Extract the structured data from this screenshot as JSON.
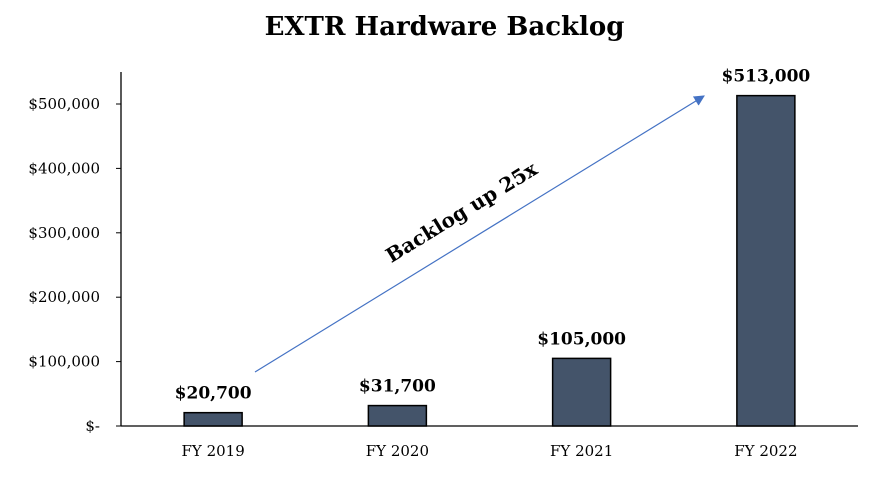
{
  "chart_data": {
    "type": "bar",
    "title": "EXTR Hardware Backlog",
    "xlabel": "",
    "ylabel": "",
    "categories": [
      "FY 2019",
      "FY 2020",
      "FY 2021",
      "FY 2022"
    ],
    "values": [
      20700,
      31700,
      105000,
      513000
    ],
    "data_labels": [
      "$20,700",
      "$31,700",
      "$105,000",
      "$513,000"
    ],
    "ylim": [
      0,
      500000
    ],
    "yticks": [
      0,
      100000,
      200000,
      300000,
      400000,
      500000
    ],
    "ytick_labels": [
      "$-",
      "$100,000",
      "$200,000",
      "$300,000",
      "$400,000",
      "$500,000"
    ],
    "grid": false,
    "legend": "none",
    "bar_color": "#44546a",
    "annotation": {
      "text": "Backlog up 25x",
      "arrow_color": "#4472c4"
    }
  }
}
